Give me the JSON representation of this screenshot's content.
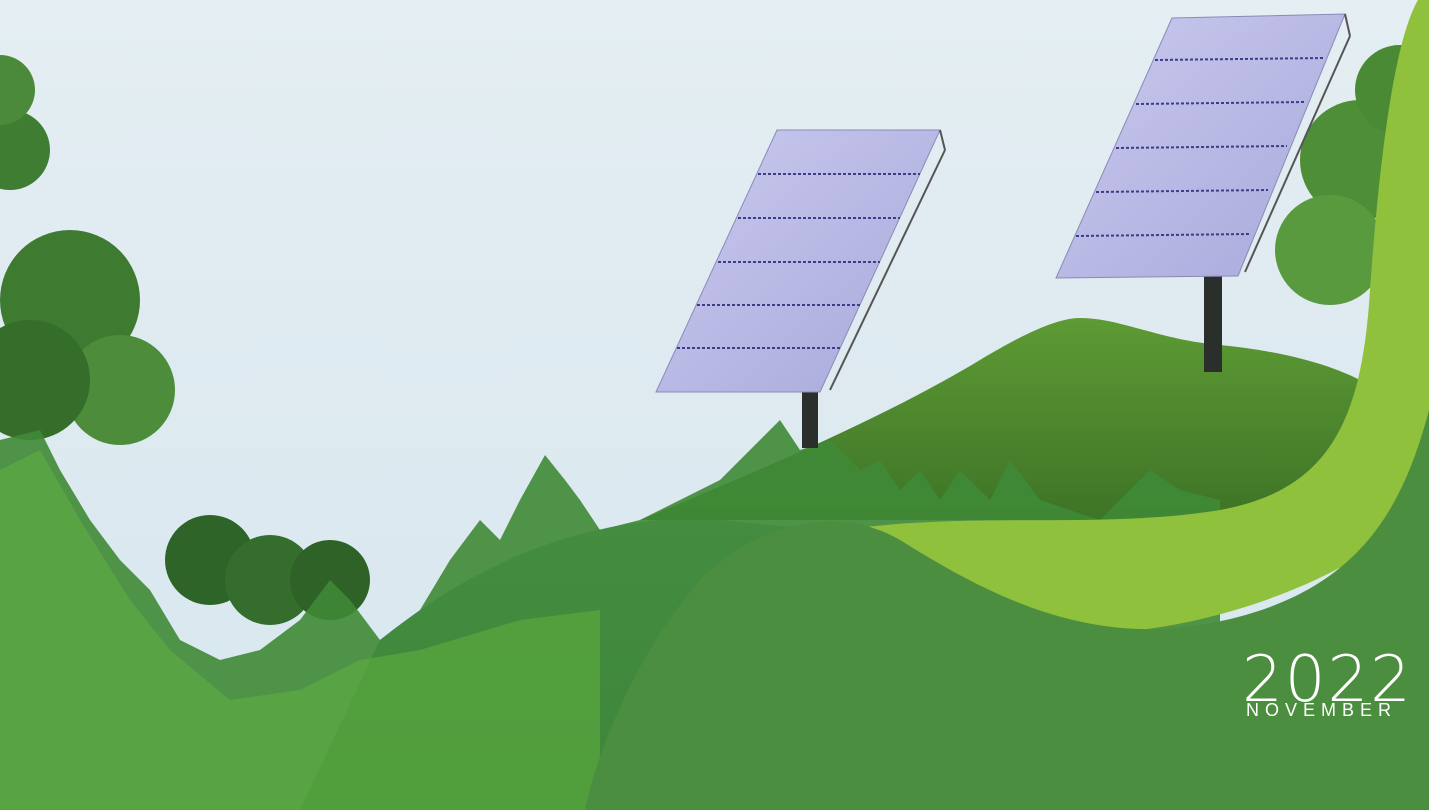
{
  "cover": {
    "year": "2022",
    "month": "NOVEMBER"
  },
  "colors": {
    "sky": "#dde9ef",
    "band_dark_green": "#4e8e3e",
    "band_lime": "#8dbf3c",
    "panel": "#b9b9e6",
    "hill": "#4f8a2e",
    "teal": "#5d9b8b"
  },
  "icons": [
    "solar-panel-left",
    "solar-panel-right",
    "tree",
    "grass-hill"
  ]
}
